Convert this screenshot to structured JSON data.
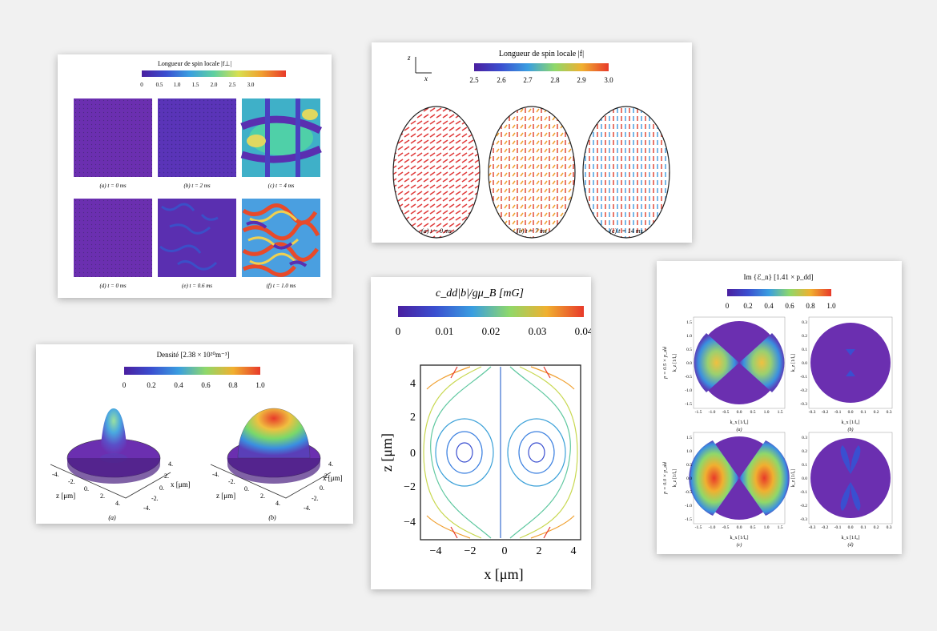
{
  "colors": {
    "background": "#f1f1f1",
    "colormap": [
      "#4a1fa0",
      "#3a4fd0",
      "#3a9ee0",
      "#5fd0a0",
      "#d8e050",
      "#f0a030",
      "#e83a2a"
    ],
    "purple": "#6b2fb0"
  },
  "panel1": {
    "title": "Longueur de spin locale |f⊥|",
    "cbar_ticks": [
      "0",
      "0.5",
      "1.0",
      "1.5",
      "2.0",
      "2.5",
      "3.0"
    ],
    "captions": [
      "(a) t = 0 ms",
      "(b) t = 2 ms",
      "(c) t = 4 ms",
      "(d) t = 0 ms",
      "(e) t = 0.6 ms",
      "(f) t = 1.0 ms"
    ]
  },
  "panel2": {
    "title": "Longueur de spin locale |f|",
    "cbar_ticks": [
      "2.5",
      "2.6",
      "2.7",
      "2.8",
      "2.9",
      "3.0"
    ],
    "axis_z": "z",
    "axis_x": "x",
    "captions": [
      "(a) t = 0 ms",
      "(b) t = 7 ms",
      "(c) t = 14 ms"
    ]
  },
  "panel3": {
    "title": "Densité [2.38 × 10²⁰m⁻³]",
    "cbar_ticks": [
      "0",
      "0.2",
      "0.4",
      "0.6",
      "0.8",
      "1.0"
    ],
    "axis_x": "x [μm]",
    "axis_z": "z [μm]",
    "ticks_x": [
      "4.",
      "2.",
      "0.",
      "-2.",
      "-4."
    ],
    "ticks_z": [
      "-4.",
      "-2.",
      "0.",
      "2.",
      "4."
    ],
    "captions": [
      "(a)",
      "(b)"
    ]
  },
  "panel4": {
    "title": "c_dd|b|/gμ_B [mG]",
    "cbar_ticks": [
      "0",
      "0.01",
      "0.02",
      "0.03",
      "0.04"
    ],
    "xlabel": "x [μm]",
    "ylabel": "z [μm]",
    "xticks": [
      "−4",
      "−2",
      "0",
      "2",
      "4"
    ],
    "yticks": [
      "4",
      "2",
      "0",
      "−2",
      "−4"
    ]
  },
  "panel5": {
    "title": "Im {ℰ_n} [1.41 × p_dd]",
    "cbar_ticks": [
      "0",
      "0.2",
      "0.4",
      "0.6",
      "0.8",
      "1.0"
    ],
    "row_labels": [
      "p = 0.5 × p_dd",
      "p = 0.0 × p_dd"
    ],
    "ylabel": "k_z [1/l₀]",
    "xlabel": "k_x [1/l₀]",
    "big_ticks": [
      "-1.5",
      "-1.0",
      "-0.5",
      "0.0",
      "0.5",
      "1.0",
      "1.5"
    ],
    "small_ticks": [
      "-0.3",
      "-0.2",
      "-0.1",
      "0.0",
      "0.1",
      "0.2",
      "0.3"
    ],
    "big_yticks": [
      "1.5",
      "1.0",
      "0.5",
      "0.0",
      "-0.5",
      "-1.0",
      "-1.5"
    ],
    "small_yticks": [
      "0.3",
      "0.2",
      "0.1",
      "0.0",
      "-0.1",
      "-0.2",
      "-0.3"
    ],
    "captions": [
      "(a)",
      "(b)",
      "(c)",
      "(d)"
    ]
  }
}
